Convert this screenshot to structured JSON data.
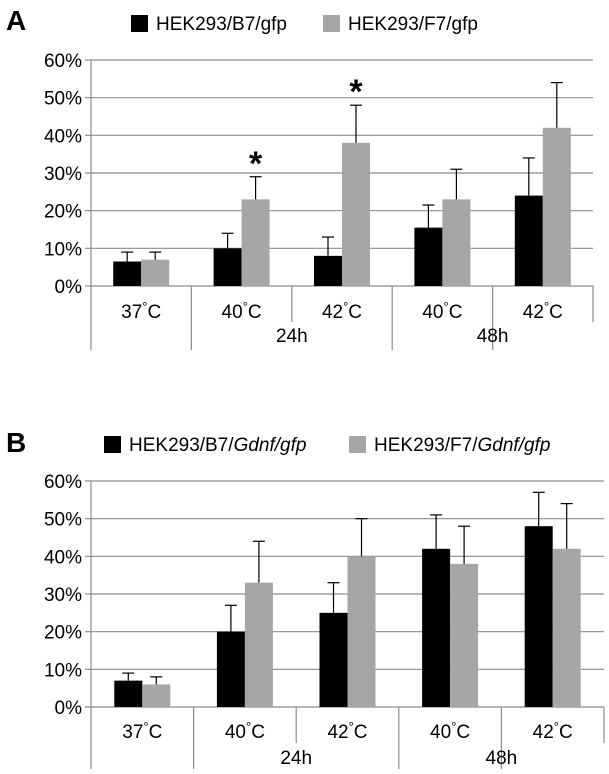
{
  "panels": [
    {
      "letter": "A",
      "legend": [
        {
          "name": "HEK293/B7/gfp",
          "prefix": "HEK293/B7/gfp",
          "italic": "",
          "suffix": ""
        },
        {
          "name": "HEK293/F7/gfp",
          "prefix": "HEK293/F7/gfp",
          "italic": "",
          "suffix": ""
        }
      ],
      "groups": [
        "24h",
        "48h"
      ]
    },
    {
      "letter": "B",
      "legend": [
        {
          "name": "HEK293/B7/Gdnf/gfp",
          "prefix": "HEK293/B7/",
          "italic": "Gdnf/gfp",
          "suffix": ""
        },
        {
          "name": "HEK293/F7/Gdnf/gfp",
          "prefix": "HEK293/F7/",
          "italic": "Gdnf/gfp",
          "suffix": ""
        }
      ],
      "groups": [
        "24h",
        "48h"
      ]
    }
  ],
  "colors": {
    "series1": "#000000",
    "series2": "#a6a6a6",
    "grid": "#8c8c8c",
    "axis": "#8c8c8c"
  },
  "chart_data": [
    {
      "type": "bar",
      "title": "",
      "categories": [
        "37°C",
        "40°C",
        "42°C",
        "40°C",
        "42°C"
      ],
      "category_groups": [
        "",
        "24h",
        "24h",
        "48h",
        "48h"
      ],
      "series": [
        {
          "name": "HEK293/B7/gfp",
          "values": [
            6.5,
            10,
            8,
            15.5,
            24
          ],
          "errors": [
            2.5,
            4,
            5,
            6,
            10
          ]
        },
        {
          "name": "HEK293/F7/gfp",
          "values": [
            7,
            23,
            38,
            23,
            42
          ],
          "errors": [
            2,
            6,
            10,
            8,
            12
          ]
        }
      ],
      "annotations": [
        {
          "text": "*",
          "category_index": 1,
          "series_index": 1
        },
        {
          "text": "*",
          "category_index": 2,
          "series_index": 1
        }
      ],
      "ylim": [
        0,
        60
      ],
      "yticks": [
        0,
        10,
        20,
        30,
        40,
        50,
        60
      ],
      "ytick_labels": [
        "0%",
        "10%",
        "20%",
        "30%",
        "40%",
        "50%",
        "60%"
      ],
      "xlabel": "",
      "ylabel": "",
      "grid": true,
      "legend": "top"
    },
    {
      "type": "bar",
      "title": "",
      "categories": [
        "37°C",
        "40°C",
        "42°C",
        "40°C",
        "42°C"
      ],
      "category_groups": [
        "",
        "24h",
        "24h",
        "48h",
        "48h"
      ],
      "series": [
        {
          "name": "HEK293/B7/Gdnf/gfp",
          "values": [
            7,
            20,
            25,
            42,
            48
          ],
          "errors": [
            2,
            7,
            8,
            9,
            9
          ]
        },
        {
          "name": "HEK293/F7/Gdnf/gfp",
          "values": [
            6,
            33,
            40,
            38,
            42
          ],
          "errors": [
            2,
            11,
            10,
            10,
            12
          ]
        }
      ],
      "annotations": [],
      "ylim": [
        0,
        60
      ],
      "yticks": [
        0,
        10,
        20,
        30,
        40,
        50,
        60
      ],
      "ytick_labels": [
        "0%",
        "10%",
        "20%",
        "30%",
        "40%",
        "50%",
        "60%"
      ],
      "xlabel": "",
      "ylabel": "",
      "grid": true,
      "legend": "top"
    }
  ]
}
